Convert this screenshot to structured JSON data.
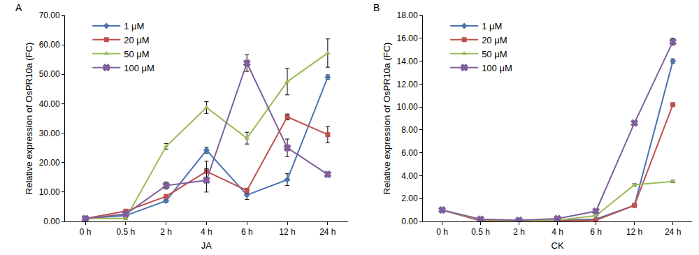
{
  "chart_data": [
    {
      "type": "line",
      "panel": "A",
      "x_label": "JA",
      "y_label": "Relative expression of OsPR10a (FC)",
      "categories": [
        "0 h",
        "0.5 h",
        "2 h",
        "4 h",
        "6 h",
        "12 h",
        "24 h"
      ],
      "ylim": [
        0,
        70
      ],
      "yticks": [
        {
          "value": 0,
          "label": "0.00"
        },
        {
          "value": 10,
          "label": "10.00"
        },
        {
          "value": 20,
          "label": "20.00"
        },
        {
          "value": 30,
          "label": "30.00"
        },
        {
          "value": 40,
          "label": "40.00"
        },
        {
          "value": 50,
          "label": "50.00"
        },
        {
          "value": 60,
          "label": "60.00"
        },
        {
          "value": 70,
          "label": "70.00"
        }
      ],
      "legend": "top-left",
      "grid": false,
      "series": [
        {
          "name": "1 μM",
          "color": "#4a72b0",
          "marker": "diamond",
          "values": [
            1,
            2,
            7,
            24.2,
            9,
            14.2,
            49
          ],
          "errors": [
            0,
            0,
            0.5,
            1,
            1.5,
            2,
            0.8
          ]
        },
        {
          "name": "20 μM",
          "color": "#c0504d",
          "marker": "square",
          "values": [
            1,
            3.5,
            8.5,
            17,
            10.5,
            35.5,
            29.5
          ],
          "errors": [
            0,
            0.3,
            0.5,
            3.5,
            0.8,
            1,
            2.8
          ]
        },
        {
          "name": "50 μM",
          "color": "#9bbb59",
          "marker": "triangle-up",
          "values": [
            1,
            1,
            25.5,
            38.7,
            28.3,
            47.5,
            57.2
          ],
          "errors": [
            0,
            0.3,
            1,
            2,
            2,
            4.5,
            4.8
          ]
        },
        {
          "name": "100 μM",
          "color": "#7f5f9a",
          "marker": "x",
          "values": [
            1,
            2.5,
            12.2,
            14,
            53.8,
            25,
            16
          ],
          "errors": [
            0,
            0.3,
            1.2,
            4,
            2.8,
            3,
            0.8
          ]
        }
      ]
    },
    {
      "type": "line",
      "panel": "B",
      "x_label": "CK",
      "y_label": "Relative expression of OsPR10a (FC)",
      "categories": [
        "0 h",
        "0.5 h",
        "2 h",
        "4 h",
        "6 h",
        "12 h",
        "24 h"
      ],
      "ylim": [
        0,
        18
      ],
      "yticks": [
        {
          "value": 0,
          "label": "0.00"
        },
        {
          "value": 2,
          "label": "2.00"
        },
        {
          "value": 4,
          "label": "4.00"
        },
        {
          "value": 6,
          "label": "6.00"
        },
        {
          "value": 8,
          "label": "8.00"
        },
        {
          "value": 10,
          "label": "10.00"
        },
        {
          "value": 12,
          "label": "12.00"
        },
        {
          "value": 14,
          "label": "14.00"
        },
        {
          "value": 16,
          "label": "16.00"
        },
        {
          "value": 18,
          "label": "18.00"
        }
      ],
      "legend": "top-left",
      "grid": false,
      "series": [
        {
          "name": "1 μM",
          "color": "#4a72b0",
          "marker": "diamond",
          "values": [
            1,
            0.1,
            0.05,
            0.1,
            0.2,
            1.4,
            14.0
          ],
          "errors": [
            0,
            0,
            0,
            0,
            0,
            0.1,
            0.2
          ]
        },
        {
          "name": "20 μM",
          "color": "#c0504d",
          "marker": "square",
          "values": [
            1,
            0.05,
            0.02,
            0.05,
            0.1,
            1.4,
            10.2
          ],
          "errors": [
            0,
            0,
            0,
            0,
            0,
            0.1,
            0.1
          ]
        },
        {
          "name": "50 μM",
          "color": "#9bbb59",
          "marker": "triangle-up",
          "values": [
            1,
            0.15,
            0.05,
            0.1,
            0.5,
            3.2,
            3.5
          ],
          "errors": [
            0,
            0,
            0,
            0,
            0,
            0.1,
            0.1
          ]
        },
        {
          "name": "100 μM",
          "color": "#7f5f9a",
          "marker": "x",
          "values": [
            1,
            0.2,
            0.1,
            0.25,
            0.9,
            8.6,
            15.7
          ],
          "errors": [
            0,
            0,
            0,
            0,
            0,
            0.1,
            0.3
          ]
        }
      ]
    }
  ]
}
